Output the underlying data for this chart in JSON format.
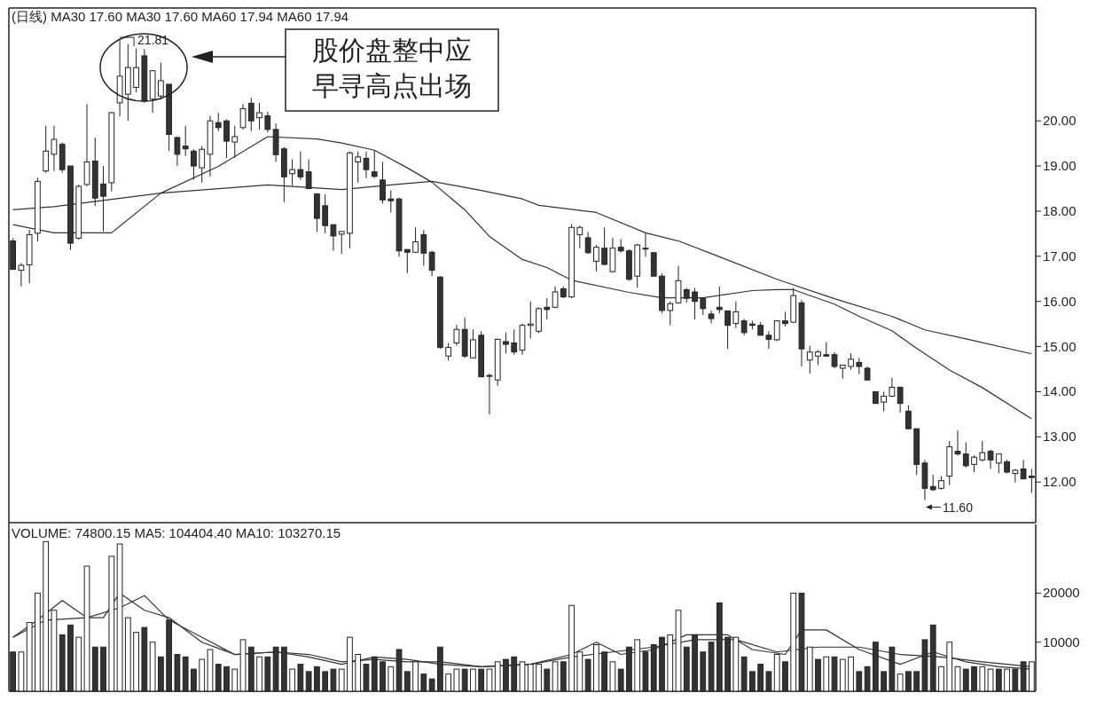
{
  "chart_data": [
    {
      "type": "candlestick",
      "title": "(日线) MA30 17.60 MA30 17.60 MA60 17.94 MA60 17.94",
      "categories": [
        null,
        null,
        null,
        null,
        null,
        null,
        null,
        null,
        null,
        null,
        null,
        null,
        null,
        null,
        null,
        null,
        null,
        null,
        null,
        null,
        null,
        null,
        null,
        null,
        null,
        null,
        null,
        null,
        null,
        null,
        null,
        null,
        null,
        null,
        null,
        null,
        null,
        null,
        null,
        null,
        null,
        null,
        null,
        null,
        null,
        null,
        null,
        null,
        null,
        null,
        null,
        null,
        null,
        null,
        null,
        null,
        null,
        null,
        null,
        null,
        null,
        null,
        null,
        null,
        null,
        null,
        null,
        null,
        null,
        null,
        null,
        null,
        null,
        null,
        null,
        null,
        null,
        null,
        null,
        null,
        null,
        null,
        null,
        null,
        null,
        null,
        null,
        null,
        null,
        null,
        null,
        null,
        null,
        null,
        null,
        null,
        null,
        null,
        null,
        null,
        null,
        null,
        null,
        null,
        null,
        null,
        null,
        null,
        null,
        null,
        null,
        null,
        null,
        null,
        null,
        null,
        null,
        null,
        null,
        null,
        null,
        null,
        null,
        null,
        null
      ],
      "ohlc": [
        [
          17.34,
          17.4,
          16.7,
          16.71
        ],
        [
          16.69,
          16.85,
          16.33,
          16.8
        ],
        [
          16.81,
          17.59,
          16.4,
          17.48
        ],
        [
          17.51,
          18.74,
          17.33,
          18.66
        ],
        [
          18.89,
          19.89,
          18.85,
          19.33
        ],
        [
          19.26,
          19.89,
          18.89,
          19.59
        ],
        [
          19.48,
          19.52,
          18.85,
          18.92
        ],
        [
          19.0,
          19.0,
          17.14,
          17.29
        ],
        [
          17.4,
          18.59,
          17.37,
          18.55
        ],
        [
          18.59,
          20.37,
          18.55,
          19.09
        ],
        [
          19.11,
          19.63,
          18.11,
          18.29
        ],
        [
          18.6,
          19.0,
          17.55,
          18.33
        ],
        [
          18.63,
          20.2,
          18.44,
          20.18
        ],
        [
          20.4,
          21.81,
          20.1,
          20.99
        ],
        [
          20.59,
          21.7,
          20.0,
          21.18
        ],
        [
          20.74,
          21.6,
          20.63,
          21.18
        ],
        [
          21.44,
          21.59,
          20.4,
          20.44
        ],
        [
          20.48,
          21.11,
          20.18,
          21.11
        ],
        [
          20.55,
          21.29,
          20.48,
          20.89
        ],
        [
          20.81,
          20.81,
          19.33,
          19.7
        ],
        [
          19.63,
          19.66,
          19.0,
          19.26
        ],
        [
          19.44,
          19.89,
          19.22,
          19.38
        ],
        [
          19.33,
          19.37,
          18.7,
          19.0
        ],
        [
          18.96,
          19.44,
          18.63,
          19.37
        ],
        [
          19.26,
          20.11,
          18.77,
          20.0
        ],
        [
          19.96,
          20.18,
          19.77,
          19.85
        ],
        [
          20.0,
          20.03,
          19.18,
          19.55
        ],
        [
          19.53,
          19.89,
          19.18,
          19.65
        ],
        [
          19.85,
          20.37,
          19.81,
          20.27
        ],
        [
          20.39,
          20.51,
          19.77,
          20.0
        ],
        [
          20.07,
          20.4,
          19.81,
          20.18
        ],
        [
          20.11,
          20.2,
          19.75,
          19.81
        ],
        [
          19.81,
          19.94,
          19.09,
          19.25
        ],
        [
          19.38,
          19.42,
          18.2,
          18.76
        ],
        [
          18.83,
          19.15,
          18.56,
          18.92
        ],
        [
          18.92,
          19.32,
          18.69,
          18.76
        ],
        [
          18.87,
          19.15,
          18.5,
          18.5
        ],
        [
          18.38,
          18.4,
          17.54,
          17.84
        ],
        [
          18.12,
          18.37,
          17.51,
          17.68
        ],
        [
          17.7,
          17.71,
          17.12,
          17.45
        ],
        [
          17.49,
          17.55,
          17.05,
          17.55
        ],
        [
          17.51,
          19.32,
          17.18,
          19.29
        ],
        [
          19.09,
          19.32,
          18.63,
          19.2
        ],
        [
          19.17,
          19.32,
          18.73,
          18.92
        ],
        [
          18.87,
          19.35,
          18.73,
          18.77
        ],
        [
          18.69,
          19.09,
          18.17,
          18.25
        ],
        [
          18.27,
          18.46,
          17.97,
          18.23
        ],
        [
          18.27,
          18.3,
          16.99,
          17.12
        ],
        [
          17.15,
          17.15,
          16.63,
          17.09
        ],
        [
          17.09,
          17.64,
          17.07,
          17.32
        ],
        [
          17.48,
          17.58,
          16.79,
          17.07
        ],
        [
          17.09,
          17.12,
          16.56,
          16.69
        ],
        [
          16.54,
          16.56,
          14.95,
          14.98
        ],
        [
          14.79,
          15.08,
          14.69,
          14.98
        ],
        [
          15.08,
          15.48,
          15.02,
          15.38
        ],
        [
          15.38,
          15.64,
          14.75,
          14.79
        ],
        [
          14.75,
          15.38,
          14.75,
          15.15
        ],
        [
          15.25,
          15.34,
          14.33,
          14.33
        ],
        [
          14.36,
          14.4,
          13.5,
          14.36
        ],
        [
          14.26,
          15.18,
          14.13,
          15.16
        ],
        [
          15.11,
          15.31,
          14.85,
          15.05
        ],
        [
          15.08,
          15.38,
          14.82,
          14.88
        ],
        [
          14.92,
          15.51,
          14.82,
          15.47
        ],
        [
          15.47,
          16.0,
          15.18,
          15.5
        ],
        [
          15.34,
          15.87,
          15.3,
          15.84
        ],
        [
          15.87,
          16.07,
          15.6,
          15.82
        ],
        [
          15.87,
          16.33,
          15.85,
          16.21
        ],
        [
          16.28,
          16.33,
          16.07,
          16.1
        ],
        [
          16.1,
          17.71,
          16.07,
          17.64
        ],
        [
          17.48,
          17.68,
          17.18,
          17.64
        ],
        [
          17.41,
          17.54,
          17.05,
          17.08
        ],
        [
          16.89,
          17.25,
          16.66,
          17.2
        ],
        [
          17.18,
          17.64,
          16.8,
          16.82
        ],
        [
          16.66,
          17.41,
          16.64,
          17.18
        ],
        [
          17.2,
          17.38,
          17.08,
          17.12
        ],
        [
          17.12,
          17.15,
          16.46,
          16.49
        ],
        [
          16.56,
          17.28,
          16.3,
          17.25
        ],
        [
          17.18,
          17.51,
          16.99,
          17.18
        ],
        [
          17.08,
          17.08,
          16.56,
          16.56
        ],
        [
          16.56,
          16.62,
          15.74,
          15.8
        ],
        [
          15.8,
          16.0,
          15.47,
          15.95
        ],
        [
          15.97,
          16.79,
          15.95,
          16.46
        ],
        [
          16.26,
          16.3,
          15.97,
          16.07
        ],
        [
          16.21,
          16.3,
          15.6,
          16.0
        ],
        [
          16.07,
          16.07,
          15.7,
          15.84
        ],
        [
          15.72,
          15.8,
          15.51,
          15.62
        ],
        [
          15.87,
          16.33,
          15.74,
          15.82
        ],
        [
          15.79,
          15.8,
          14.95,
          15.47
        ],
        [
          15.51,
          16.0,
          15.41,
          15.77
        ],
        [
          15.57,
          15.61,
          15.25,
          15.31
        ],
        [
          15.5,
          15.57,
          15.38,
          15.47
        ],
        [
          15.47,
          15.54,
          15.25,
          15.25
        ],
        [
          15.25,
          15.34,
          14.95,
          15.16
        ],
        [
          15.15,
          15.57,
          15.12,
          15.57
        ],
        [
          15.57,
          15.77,
          15.44,
          15.51
        ],
        [
          15.54,
          16.3,
          15.52,
          16.13
        ],
        [
          15.97,
          16.03,
          14.56,
          14.95
        ],
        [
          14.7,
          15.02,
          14.4,
          14.88
        ],
        [
          14.79,
          14.92,
          14.59,
          14.88
        ],
        [
          14.82,
          15.1,
          14.77,
          14.79
        ],
        [
          14.82,
          14.88,
          14.52,
          14.56
        ],
        [
          14.52,
          14.59,
          14.29,
          14.59
        ],
        [
          14.56,
          14.85,
          14.49,
          14.72
        ],
        [
          14.65,
          14.75,
          14.39,
          14.56
        ],
        [
          14.52,
          14.56,
          14.26,
          14.26
        ],
        [
          14.0,
          14.0,
          13.74,
          13.74
        ],
        [
          13.77,
          14.0,
          13.57,
          13.9
        ],
        [
          13.9,
          14.31,
          13.88,
          14.1
        ],
        [
          14.1,
          14.1,
          13.54,
          13.74
        ],
        [
          13.57,
          13.7,
          13.18,
          13.18
        ],
        [
          13.18,
          13.18,
          12.16,
          12.39
        ],
        [
          12.42,
          12.49,
          11.6,
          11.86
        ],
        [
          11.9,
          12.16,
          11.8,
          11.83
        ],
        [
          11.86,
          12.13,
          11.83,
          12.03
        ],
        [
          12.13,
          12.91,
          11.93,
          12.78
        ],
        [
          12.68,
          13.14,
          12.59,
          12.62
        ],
        [
          12.62,
          12.88,
          12.32,
          12.36
        ],
        [
          12.39,
          12.59,
          12.22,
          12.55
        ],
        [
          12.49,
          12.91,
          12.45,
          12.65
        ],
        [
          12.68,
          12.72,
          12.29,
          12.49
        ],
        [
          12.42,
          12.62,
          12.19,
          12.62
        ],
        [
          12.45,
          12.49,
          12.19,
          12.22
        ],
        [
          12.19,
          12.29,
          11.99,
          12.26
        ],
        [
          12.29,
          12.49,
          12.06,
          12.07
        ],
        [
          12.13,
          12.29,
          11.76,
          12.1
        ]
      ],
      "series": [
        {
          "type": "line",
          "color": "#333333",
          "values": [
            17.7,
            null,
            null,
            null,
            null,
            17.52,
            null,
            null,
            null,
            null,
            null,
            null,
            17.52,
            null,
            null,
            null,
            null,
            null,
            18.4,
            null,
            null,
            null,
            null,
            null,
            null,
            18.99,
            null,
            null,
            null,
            null,
            null,
            19.65,
            null,
            null,
            null,
            null,
            null,
            19.6,
            null,
            null,
            19.51,
            null,
            null,
            null,
            19.35,
            null,
            null,
            null,
            18.96,
            null,
            null,
            18.64,
            null,
            null,
            null,
            18.03,
            null,
            null,
            17.44,
            null,
            null,
            null,
            16.93,
            null,
            null,
            16.75,
            null,
            null,
            16.47,
            null,
            null,
            null,
            null,
            null,
            null,
            16.2,
            null,
            null,
            null,
            16.08,
            null,
            null,
            null,
            null,
            16.08,
            null,
            null,
            null,
            null,
            null,
            16.24,
            null,
            null,
            16.26,
            null,
            16.26,
            null,
            null,
            null,
            null,
            15.94,
            null,
            null,
            15.67,
            null,
            null,
            null,
            15.35,
            null,
            null,
            14.96,
            null,
            null,
            null,
            14.48,
            null,
            null,
            null,
            14.09,
            null,
            null,
            null,
            null,
            null,
            13.4
          ]
        },
        {
          "type": "line",
          "color": "#333333",
          "values": [
            18.03,
            null,
            null,
            null,
            null,
            18.1,
            null,
            null,
            null,
            null,
            null,
            null,
            null,
            null,
            null,
            null,
            null,
            null,
            18.4,
            null,
            null,
            null,
            null,
            null,
            null,
            null,
            null,
            null,
            null,
            null,
            null,
            18.58,
            null,
            null,
            null,
            null,
            null,
            null,
            null,
            null,
            18.48,
            null,
            null,
            null,
            null,
            null,
            18.58,
            null,
            null,
            null,
            null,
            18.66,
            null,
            null,
            null,
            null,
            null,
            18.46,
            null,
            null,
            null,
            null,
            18.27,
            null,
            18.13,
            null,
            null,
            null,
            null,
            null,
            null,
            17.97,
            null,
            null,
            null,
            null,
            null,
            17.52,
            null,
            null,
            null,
            17.34,
            null,
            null,
            null,
            null,
            16.99,
            null,
            null,
            null,
            null,
            null,
            null,
            16.49,
            null,
            null,
            null,
            null,
            null,
            null,
            16.06,
            null,
            null,
            null,
            null,
            null,
            null,
            15.67,
            null,
            null,
            null,
            15.37,
            null,
            null,
            null,
            null,
            15.17,
            null,
            null,
            null,
            null,
            null,
            null,
            null,
            14.84
          ]
        }
      ],
      "ylim": [
        11.1,
        22.5
      ],
      "yticks": [
        {
          "value": 12,
          "label": "12.00"
        },
        {
          "value": 13,
          "label": "13.00"
        },
        {
          "value": 14,
          "label": "14.00"
        },
        {
          "value": 15,
          "label": "15.00"
        },
        {
          "value": 16,
          "label": "16.00"
        },
        {
          "value": 17,
          "label": "17.00"
        },
        {
          "value": 18,
          "label": "18.00"
        },
        {
          "value": 19,
          "label": "19.00"
        },
        {
          "value": 20,
          "label": "20.00"
        }
      ],
      "tick_labels": "y",
      "annotations": [
        "股价盘整中应早寻高点出场",
        "21.81",
        "11.60"
      ]
    },
    {
      "type": "bar",
      "title": "VOLUME: 74800.15 MA5: 104404.40 MA10: 103270.15",
      "categories": [
        null,
        null,
        null,
        null,
        null,
        null,
        null,
        null,
        null,
        null,
        null,
        null,
        null,
        null,
        null,
        null,
        null,
        null,
        null,
        null,
        null,
        null,
        null,
        null,
        null,
        null,
        null,
        null,
        null,
        null,
        null,
        null,
        null,
        null,
        null,
        null,
        null,
        null,
        null,
        null,
        null,
        null,
        null,
        null,
        null,
        null,
        null,
        null,
        null,
        null,
        null,
        null,
        null,
        null,
        null,
        null,
        null,
        null,
        null,
        null,
        null,
        null,
        null,
        null,
        null,
        null,
        null,
        null,
        null,
        null,
        null,
        null,
        null,
        null,
        null,
        null,
        null,
        null,
        null,
        null,
        null,
        null,
        null,
        null,
        null,
        null,
        null,
        null,
        null,
        null,
        null,
        null,
        null,
        null,
        null,
        null,
        null,
        null,
        null,
        null,
        null,
        null,
        null,
        null,
        null,
        null,
        null,
        null,
        null,
        null,
        null,
        null,
        null,
        null,
        null,
        null,
        null,
        null,
        null,
        null,
        null,
        null,
        null,
        null,
        null
      ],
      "values": [
        8000,
        8000,
        14000,
        20000,
        30500,
        16500,
        11500,
        13500,
        11000,
        25500,
        9000,
        9000,
        27500,
        30000,
        15000,
        12000,
        13000,
        10000,
        7000,
        14500,
        7500,
        7000,
        4500,
        6500,
        8500,
        5500,
        5000,
        4500,
        10500,
        9000,
        7000,
        7000,
        9000,
        9000,
        4500,
        5500,
        4000,
        5000,
        4000,
        4500,
        4500,
        11000,
        7500,
        5500,
        7000,
        6000,
        5000,
        8500,
        4000,
        6000,
        3500,
        2500,
        9000,
        3500,
        4500,
        4500,
        4500,
        4500,
        4500,
        6000,
        6500,
        7000,
        6000,
        5500,
        5500,
        4500,
        6000,
        6000,
        17500,
        8000,
        6500,
        9500,
        8000,
        6000,
        4500,
        9000,
        10500,
        8000,
        9500,
        11000,
        11500,
        16500,
        9000,
        11500,
        8000,
        10000,
        18000,
        11000,
        11000,
        7000,
        4000,
        5500,
        4000,
        7500,
        6000,
        20000,
        20000,
        9000,
        6500,
        7000,
        7000,
        6500,
        7000,
        4000,
        5000,
        10000,
        4000,
        9000,
        3500,
        4000,
        4000,
        10500,
        13500,
        5000,
        10000,
        5000,
        4500,
        5000,
        5000,
        4500,
        4500,
        4500,
        4500,
        6000,
        6000
      ],
      "colors": [
        "#333333",
        "#ffffff",
        "#ffffff",
        "#ffffff",
        "#ffffff",
        "#ffffff",
        "#333333",
        "#333333",
        "#ffffff",
        "#ffffff",
        "#333333",
        "#333333",
        "#ffffff",
        "#ffffff",
        "#ffffff",
        "#ffffff",
        "#333333",
        "#ffffff",
        "#333333",
        "#333333",
        "#333333",
        "#333333",
        "#333333",
        "#ffffff",
        "#ffffff",
        "#333333",
        "#333333",
        "#ffffff",
        "#ffffff",
        "#333333",
        "#ffffff",
        "#333333",
        "#333333",
        "#333333",
        "#ffffff",
        "#333333",
        "#333333",
        "#333333",
        "#333333",
        "#333333",
        "#ffffff",
        "#ffffff",
        "#ffffff",
        "#333333",
        "#333333",
        "#333333",
        "#ffffff",
        "#333333",
        "#333333",
        "#ffffff",
        "#333333",
        "#333333",
        "#333333",
        "#ffffff",
        "#ffffff",
        "#333333",
        "#ffffff",
        "#333333",
        "#ffffff",
        "#ffffff",
        "#333333",
        "#333333",
        "#ffffff",
        "#ffffff",
        "#ffffff",
        "#333333",
        "#ffffff",
        "#333333",
        "#ffffff",
        "#ffffff",
        "#333333",
        "#ffffff",
        "#333333",
        "#ffffff",
        "#333333",
        "#333333",
        "#ffffff",
        "#333333",
        "#333333",
        "#333333",
        "#ffffff",
        "#ffffff",
        "#333333",
        "#333333",
        "#333333",
        "#333333",
        "#333333",
        "#333333",
        "#ffffff",
        "#333333",
        "#333333",
        "#333333",
        "#333333",
        "#ffffff",
        "#333333",
        "#ffffff",
        "#333333",
        "#ffffff",
        "#333333",
        "#ffffff",
        "#333333",
        "#ffffff",
        "#ffffff",
        "#333333",
        "#333333",
        "#333333",
        "#333333",
        "#333333",
        "#ffffff",
        "#333333",
        "#333333",
        "#333333",
        "#333333",
        "#ffffff",
        "#ffffff",
        "#ffffff",
        "#333333",
        "#333333",
        "#ffffff",
        "#ffffff",
        "#333333",
        "#ffffff",
        "#333333",
        "#333333",
        "#ffffff"
      ],
      "series": [
        {
          "type": "line",
          "color": "#333333",
          "values": [
            11000,
            null,
            null,
            14500,
            null,
            null,
            18500,
            null,
            null,
            15000,
            null,
            15000,
            null,
            20000,
            null,
            null,
            16500,
            null,
            null,
            15000,
            null,
            null,
            null,
            10000,
            null,
            null,
            null,
            7500,
            null,
            null,
            null,
            null,
            8000,
            null,
            null,
            null,
            7000,
            null,
            null,
            null,
            5500,
            null,
            null,
            null,
            7000,
            null,
            null,
            null,
            6500,
            null,
            null,
            null,
            5500,
            null,
            null,
            null,
            null,
            5000,
            null,
            null,
            null,
            null,
            null,
            5500,
            null,
            null,
            null,
            null,
            7500,
            null,
            null,
            10000,
            null,
            null,
            7500,
            null,
            null,
            null,
            8500,
            null,
            null,
            null,
            11500,
            null,
            null,
            null,
            null,
            11500,
            null,
            null,
            8500,
            null,
            null,
            null,
            7500,
            null,
            12500,
            null,
            null,
            12500,
            null,
            null,
            null,
            8500,
            null,
            null,
            null,
            null,
            5500,
            null,
            null,
            null,
            8000,
            null,
            null,
            null,
            6000,
            null,
            null,
            null,
            5000,
            null,
            null,
            null,
            4500
          ]
        },
        {
          "type": "line",
          "color": "#333333",
          "values": [
            11000,
            null,
            null,
            null,
            14500,
            null,
            null,
            null,
            null,
            15000,
            null,
            null,
            null,
            17000,
            null,
            null,
            19500,
            null,
            null,
            14500,
            null,
            null,
            null,
            11000,
            null,
            null,
            null,
            7500,
            null,
            null,
            null,
            null,
            8000,
            null,
            null,
            null,
            7500,
            null,
            null,
            null,
            6000,
            null,
            null,
            null,
            6500,
            null,
            null,
            null,
            6000,
            null,
            null,
            null,
            6000,
            null,
            null,
            null,
            null,
            5000,
            null,
            null,
            null,
            null,
            null,
            5500,
            null,
            null,
            null,
            null,
            7000,
            null,
            null,
            null,
            null,
            8000,
            null,
            null,
            null,
            null,
            9000,
            null,
            null,
            null,
            null,
            10500,
            null,
            null,
            null,
            null,
            10500,
            null,
            null,
            null,
            null,
            8000,
            null,
            null,
            null,
            null,
            9000,
            null,
            null,
            null,
            null,
            9000,
            null,
            null,
            null,
            null,
            7500,
            null,
            null,
            null,
            null,
            7000,
            null,
            null,
            null,
            null,
            6000,
            null,
            null,
            null,
            null,
            null,
            5000
          ]
        }
      ],
      "ylim": [
        0,
        34000
      ],
      "yticks": [
        10000,
        20000
      ],
      "tick_labels": "y"
    }
  ]
}
